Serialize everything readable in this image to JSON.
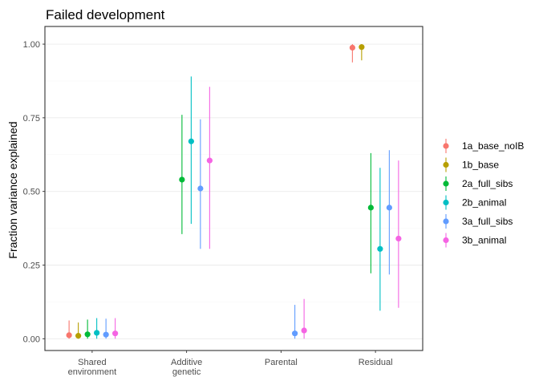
{
  "chart_data": {
    "type": "pointrange",
    "title": "Failed development",
    "xlabel": "",
    "ylabel": "Fraction variance explained",
    "ylim": [
      -0.04,
      1.06
    ],
    "yticks": [
      "0.00",
      "0.25",
      "0.50",
      "0.75",
      "1.00"
    ],
    "ytick_values": [
      0,
      0.25,
      0.5,
      0.75,
      1.0
    ],
    "categories": [
      [
        "Shared",
        "environment"
      ],
      [
        "Additive",
        "genetic"
      ],
      [
        "Parental"
      ],
      [
        "Residual"
      ]
    ],
    "grid": true,
    "legend_position": "right",
    "series": [
      {
        "name": "1a_base_noIB",
        "color": "#F8766D",
        "points": [
          {
            "category": 0,
            "y": 0.012,
            "lo": 0.0,
            "hi": 0.062
          },
          {
            "category": 3,
            "y": 0.988,
            "lo": 0.938,
            "hi": 1.0
          }
        ]
      },
      {
        "name": "1b_base",
        "color": "#B79F00",
        "points": [
          {
            "category": 0,
            "y": 0.01,
            "lo": 0.0,
            "hi": 0.055
          },
          {
            "category": 3,
            "y": 0.99,
            "lo": 0.945,
            "hi": 1.0
          }
        ]
      },
      {
        "name": "2a_full_sibs",
        "color": "#00BA38",
        "points": [
          {
            "category": 0,
            "y": 0.015,
            "lo": 0.0,
            "hi": 0.065
          },
          {
            "category": 1,
            "y": 0.54,
            "lo": 0.355,
            "hi": 0.76
          },
          {
            "category": 3,
            "y": 0.445,
            "lo": 0.222,
            "hi": 0.63
          }
        ]
      },
      {
        "name": "2b_animal",
        "color": "#00BFC4",
        "points": [
          {
            "category": 0,
            "y": 0.02,
            "lo": 0.0,
            "hi": 0.07
          },
          {
            "category": 1,
            "y": 0.67,
            "lo": 0.39,
            "hi": 0.89
          },
          {
            "category": 3,
            "y": 0.305,
            "lo": 0.095,
            "hi": 0.58
          }
        ]
      },
      {
        "name": "3a_full_sibs",
        "color": "#619CFF",
        "points": [
          {
            "category": 0,
            "y": 0.014,
            "lo": 0.0,
            "hi": 0.068
          },
          {
            "category": 1,
            "y": 0.51,
            "lo": 0.305,
            "hi": 0.745
          },
          {
            "category": 2,
            "y": 0.018,
            "lo": 0.0,
            "hi": 0.115
          },
          {
            "category": 3,
            "y": 0.445,
            "lo": 0.218,
            "hi": 0.64
          }
        ]
      },
      {
        "name": "3b_animal",
        "color": "#F564E3",
        "points": [
          {
            "category": 0,
            "y": 0.018,
            "lo": 0.0,
            "hi": 0.07
          },
          {
            "category": 1,
            "y": 0.605,
            "lo": 0.305,
            "hi": 0.855
          },
          {
            "category": 2,
            "y": 0.028,
            "lo": 0.0,
            "hi": 0.135
          },
          {
            "category": 3,
            "y": 0.34,
            "lo": 0.105,
            "hi": 0.605
          }
        ]
      }
    ]
  }
}
